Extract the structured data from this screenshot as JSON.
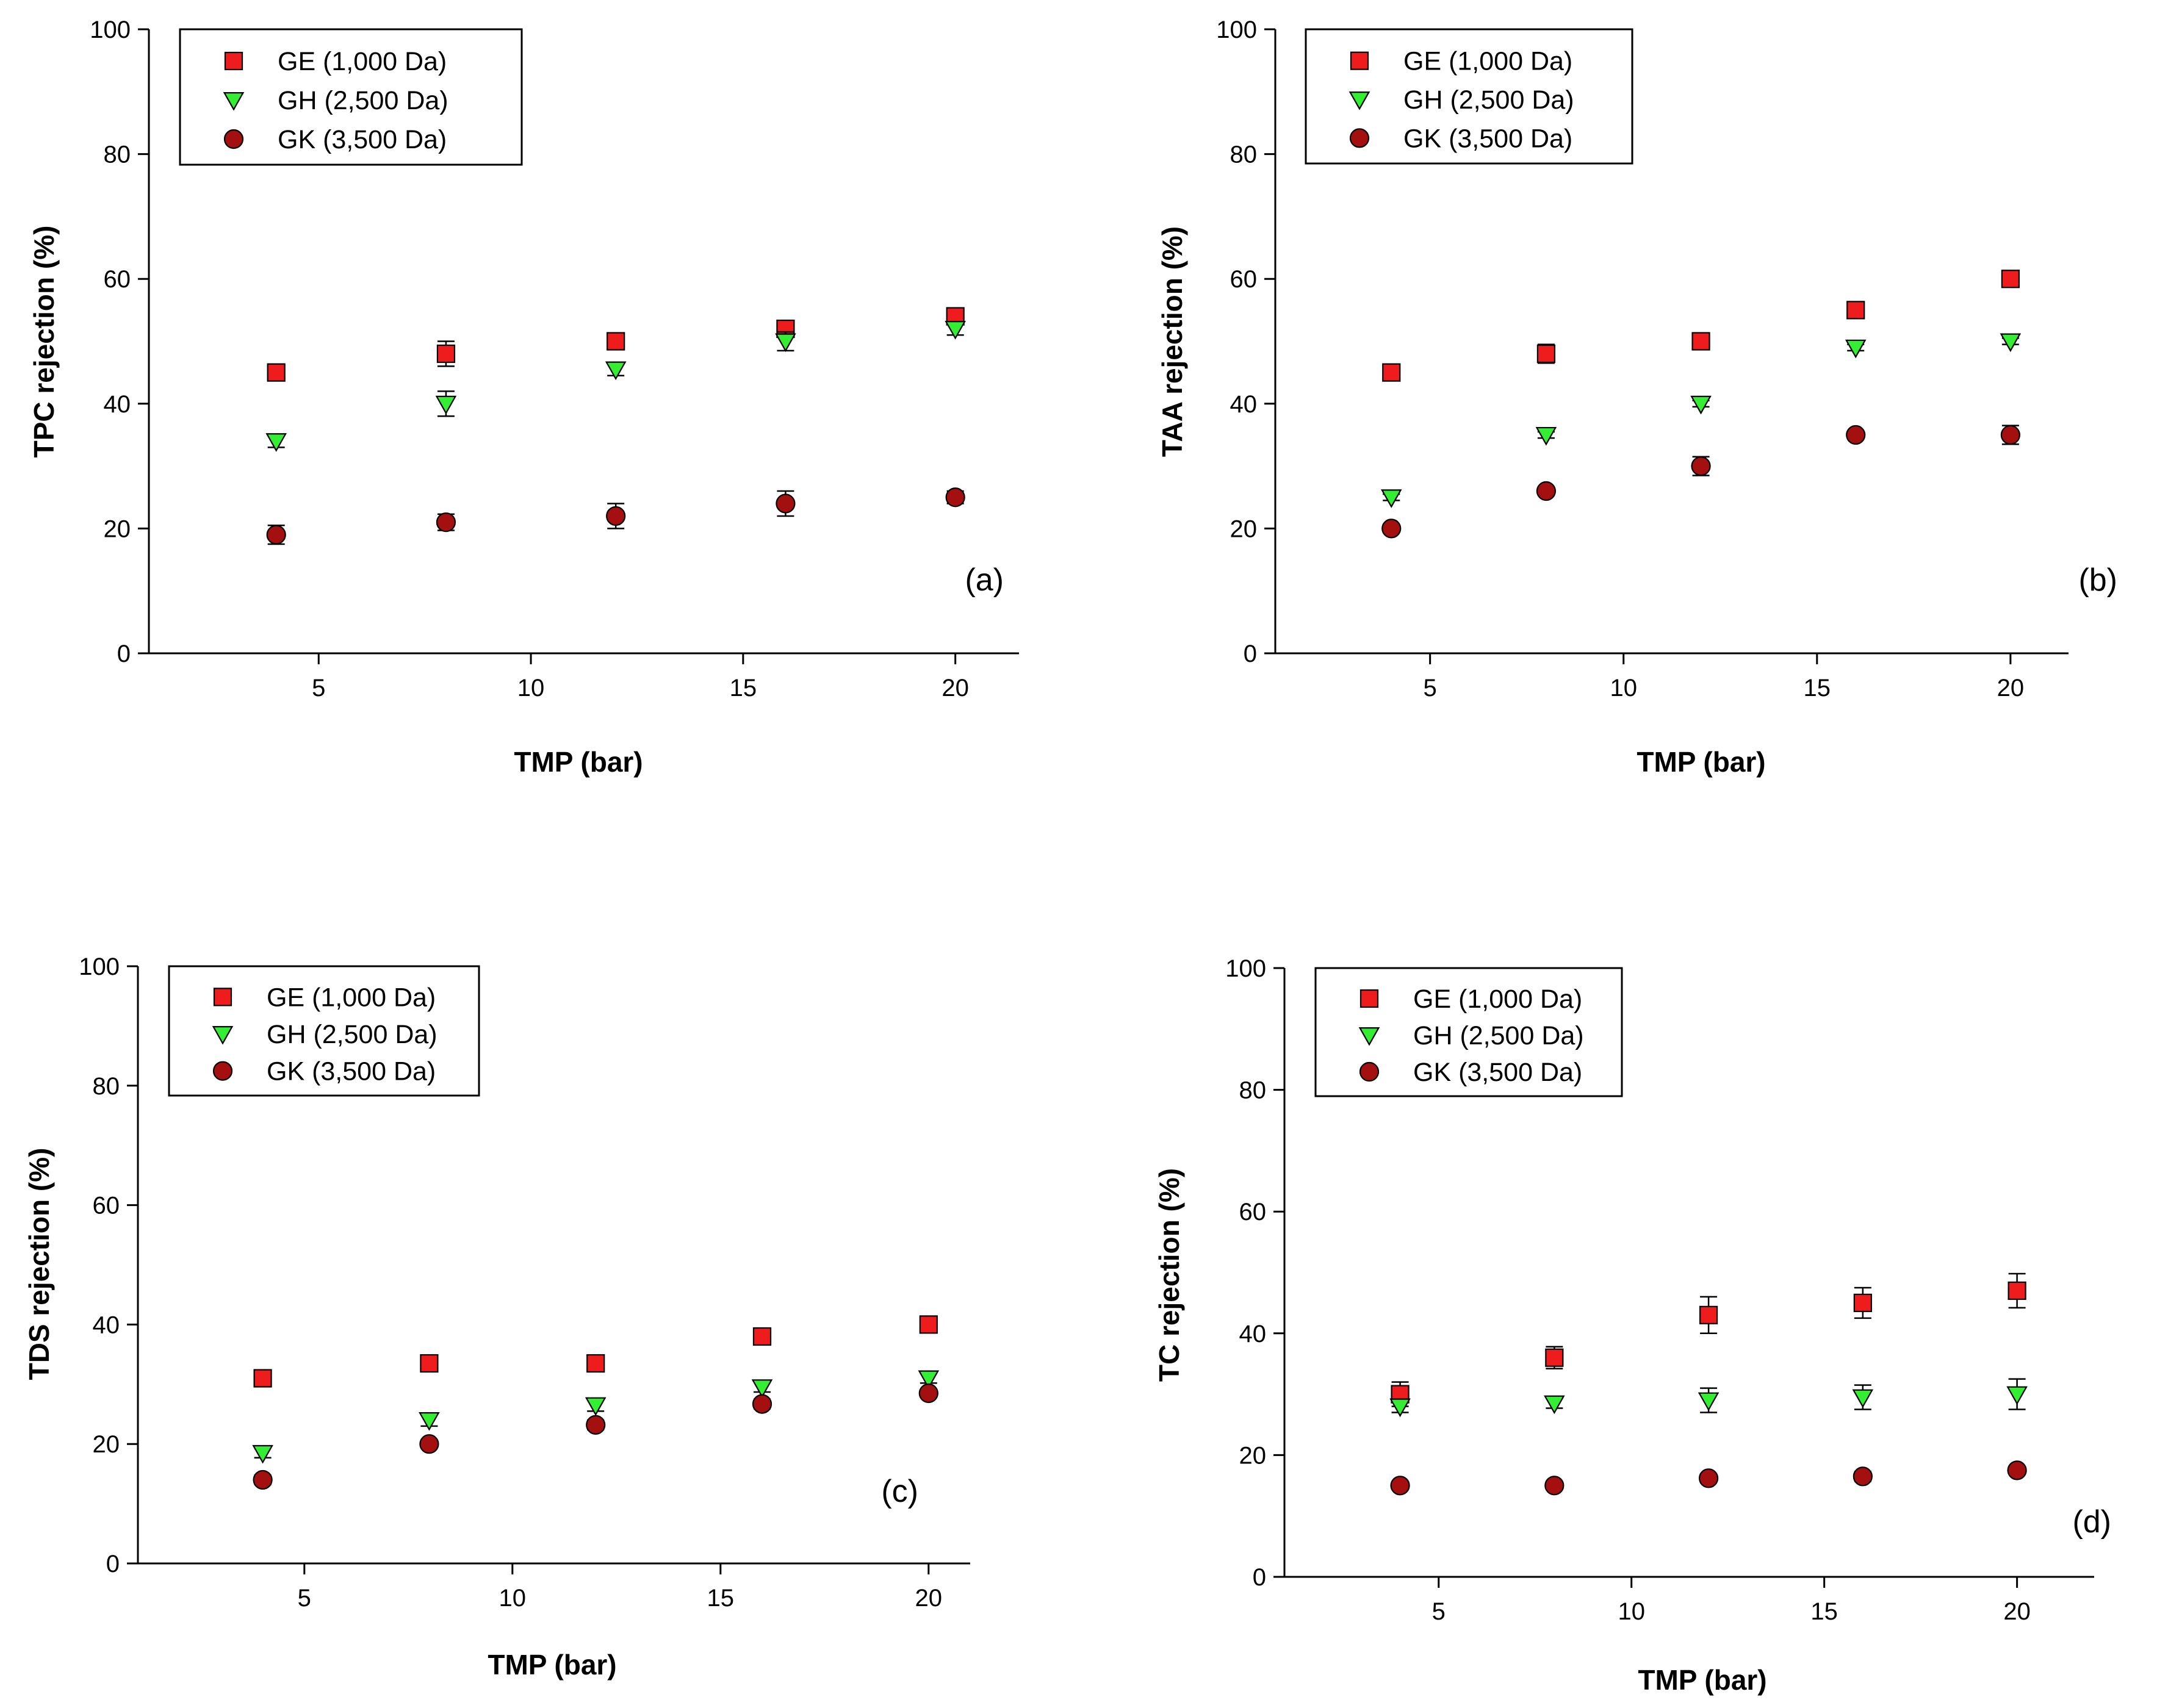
{
  "figure": {
    "colors": {
      "GE": "#ee1c1c",
      "GH": "#33ee33",
      "GK": "#a40f0f",
      "axis": "#000000"
    }
  },
  "chart_data": [
    {
      "type": "scatter",
      "tag": "(a)",
      "xlabel": "TMP (bar)",
      "ylabel": "TPC rejection (%)",
      "xlim": [
        1,
        21.5
      ],
      "ylim": [
        0,
        100
      ],
      "xticks": [
        "5",
        "10",
        "15",
        "20"
      ],
      "yticks": [
        "0",
        "20",
        "40",
        "60",
        "80",
        "100"
      ],
      "legend_position": "top-left",
      "x": [
        4,
        8,
        12,
        16,
        20
      ],
      "series": [
        {
          "name": "GE (1,000 Da)",
          "marker": "square",
          "color": "#ee1c1c",
          "values": [
            45,
            48,
            50,
            52,
            54
          ],
          "errors": [
            1.2,
            2.0,
            1.0,
            1.0,
            1.0
          ]
        },
        {
          "name": "GH (2,500 Da)",
          "marker": "triangle-down",
          "color": "#33ee33",
          "values": [
            34,
            40,
            45.5,
            50,
            52
          ],
          "errors": [
            1.0,
            2.0,
            1.0,
            1.5,
            1.0
          ]
        },
        {
          "name": "GK (3,500 Da)",
          "marker": "circle",
          "color": "#a40f0f",
          "values": [
            19,
            21,
            22,
            24,
            25
          ],
          "errors": [
            1.5,
            1.3,
            2.0,
            2.0,
            1.0
          ]
        }
      ]
    },
    {
      "type": "scatter",
      "tag": "(b)",
      "xlabel": "TMP (bar)",
      "ylabel": "TAA  rejection (%)",
      "xlim": [
        1,
        21.5
      ],
      "ylim": [
        0,
        100
      ],
      "xticks": [
        "5",
        "10",
        "15",
        "20"
      ],
      "yticks": [
        "0",
        "20",
        "40",
        "60",
        "80",
        "100"
      ],
      "legend_position": "top-left",
      "x": [
        4,
        8,
        12,
        16,
        20
      ],
      "series": [
        {
          "name": "GE (1,000 Da)",
          "marker": "square",
          "color": "#ee1c1c",
          "values": [
            45,
            48,
            50,
            55,
            60
          ],
          "errors": [
            1.2,
            1.5,
            1.0,
            0.5,
            0.5
          ]
        },
        {
          "name": "GH (2,500 Da)",
          "marker": "triangle-down",
          "color": "#33ee33",
          "values": [
            25,
            35,
            40,
            49,
            50
          ],
          "errors": [
            0.5,
            0.5,
            0.5,
            0.5,
            0.5
          ]
        },
        {
          "name": "GK (3,500 Da)",
          "marker": "circle",
          "color": "#a40f0f",
          "values": [
            20,
            26,
            30,
            35,
            35
          ],
          "errors": [
            0.3,
            0.3,
            1.5,
            0.5,
            1.5
          ]
        }
      ]
    },
    {
      "type": "scatter",
      "tag": "(c)",
      "xlabel": "TMP (bar)",
      "ylabel": "TDS rejection (%)",
      "xlim": [
        1,
        21
      ],
      "ylim": [
        0,
        100
      ],
      "xticks": [
        "5",
        "10",
        "15",
        "20"
      ],
      "yticks": [
        "0",
        "20",
        "40",
        "60",
        "80",
        "100"
      ],
      "legend_position": "top-left",
      "x": [
        4,
        8,
        12,
        16,
        20
      ],
      "series": [
        {
          "name": "GE  (1,000 Da)",
          "marker": "square",
          "color": "#ee1c1c",
          "values": [
            31,
            33.5,
            33.5,
            38,
            40
          ],
          "errors": [
            0.5,
            0.5,
            0.5,
            0.8,
            0.5
          ]
        },
        {
          "name": "GH  (2,500 Da)",
          "marker": "triangle-down",
          "color": "#33ee33",
          "values": [
            18.5,
            24,
            26.5,
            29.5,
            31
          ],
          "errors": [
            0.8,
            1.0,
            1.0,
            0.8,
            0.8
          ]
        },
        {
          "name": "GK  (3,500 Da)",
          "marker": "circle",
          "color": "#a40f0f",
          "values": [
            14,
            20,
            23.2,
            26.7,
            28.5
          ],
          "errors": [
            0.8,
            0.5,
            0.8,
            0.8,
            0.5
          ]
        }
      ]
    },
    {
      "type": "scatter",
      "tag": "(d)",
      "xlabel": "TMP (bar)",
      "ylabel": "TC rejection (%)",
      "xlim": [
        1,
        22
      ],
      "ylim": [
        0,
        100
      ],
      "xticks": [
        "5",
        "10",
        "15",
        "20"
      ],
      "yticks": [
        "0",
        "20",
        "40",
        "60",
        "80",
        "100"
      ],
      "legend_position": "top-left",
      "x": [
        4,
        8,
        12,
        16,
        20
      ],
      "series": [
        {
          "name": "GE (1,000 Da)",
          "marker": "square",
          "color": "#ee1c1c",
          "values": [
            30,
            36,
            43,
            45,
            47
          ],
          "errors": [
            2.0,
            1.8,
            3.0,
            2.5,
            2.8
          ]
        },
        {
          "name": "GH (2,500 Da)",
          "marker": "triangle-down",
          "color": "#33ee33",
          "values": [
            28,
            28.5,
            29,
            29.5,
            30
          ],
          "errors": [
            1.0,
            0.8,
            2.0,
            2.0,
            2.5
          ]
        },
        {
          "name": "GK (3,500 Da)",
          "marker": "circle",
          "color": "#a40f0f",
          "values": [
            15,
            15,
            16.2,
            16.5,
            17.5
          ],
          "errors": [
            0.3,
            0.3,
            0.3,
            0.8,
            0.3
          ]
        }
      ]
    }
  ]
}
